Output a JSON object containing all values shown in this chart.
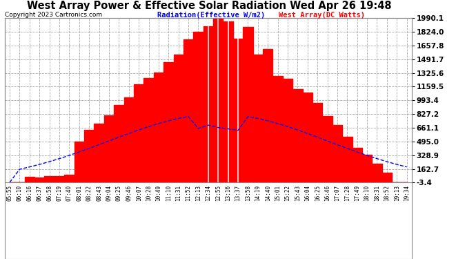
{
  "title": "West Array Power & Effective Solar Radiation Wed Apr 26 19:48",
  "copyright": "Copyright 2023 Cartronics.com",
  "legend_radiation": "Radiation(Effective W/m2)",
  "legend_west": "West Array(DC Watts)",
  "y_min": -3.4,
  "y_max": 1990.1,
  "y_ticks": [
    -3.4,
    162.7,
    328.9,
    495.0,
    661.1,
    827.2,
    993.4,
    1159.5,
    1325.6,
    1491.7,
    1657.8,
    1824.0,
    1990.1
  ],
  "bg_color": "#ffffff",
  "grid_color": "#aaaaaa",
  "radiation_color": "#0000ff",
  "west_array_color": "#ff0000",
  "radiation_peak": 827.2,
  "west_peak": 1990.0,
  "x_labels": [
    "05:55",
    "06:10",
    "06:16",
    "06:37",
    "06:58",
    "07:19",
    "07:40",
    "08:01",
    "08:22",
    "08:43",
    "09:04",
    "09:25",
    "09:46",
    "10:07",
    "10:28",
    "10:49",
    "11:10",
    "11:31",
    "11:52",
    "12:13",
    "12:34",
    "12:55",
    "13:16",
    "13:37",
    "13:58",
    "14:19",
    "14:40",
    "15:01",
    "15:22",
    "15:43",
    "16:04",
    "16:25",
    "16:46",
    "17:07",
    "17:28",
    "17:49",
    "18:10",
    "18:31",
    "18:52",
    "19:13",
    "19:34"
  ]
}
